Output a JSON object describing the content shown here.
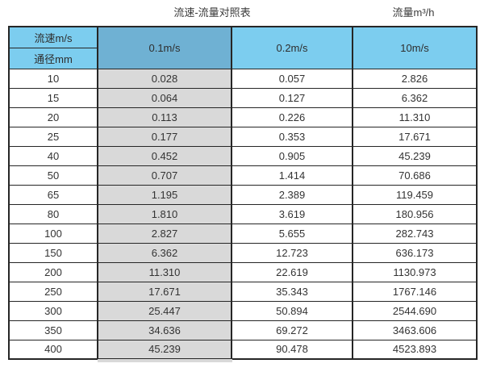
{
  "page": {
    "title": "流速-流量对照表",
    "right_label": "流量m³/h"
  },
  "chart_data": {
    "type": "table",
    "title": "流速-流量对照表",
    "unit_note": "流量m³/h",
    "corner_header_top": "流速m/s",
    "corner_header_bottom": "通径mm",
    "velocity_columns": [
      "0.1m/s",
      "0.2m/s",
      "10m/s"
    ],
    "highlighted_column": "0.1m/s",
    "rows": [
      [
        "10",
        "0.028",
        "0.057",
        "2.826"
      ],
      [
        "15",
        "0.064",
        "0.127",
        "6.362"
      ],
      [
        "20",
        "0.113",
        "0.226",
        "11.310"
      ],
      [
        "25",
        "0.177",
        "0.353",
        "17.671"
      ],
      [
        "40",
        "0.452",
        "0.905",
        "45.239"
      ],
      [
        "50",
        "0.707",
        "1.414",
        "70.686"
      ],
      [
        "65",
        "1.195",
        "2.389",
        "119.459"
      ],
      [
        "80",
        "1.810",
        "3.619",
        "180.956"
      ],
      [
        "100",
        "2.827",
        "5.655",
        "282.743"
      ],
      [
        "150",
        "6.362",
        "12.723",
        "636.173"
      ],
      [
        "200",
        "11.310",
        "22.619",
        "1130.973"
      ],
      [
        "250",
        "17.671",
        "35.343",
        "1767.146"
      ],
      [
        "300",
        "25.447",
        "50.894",
        "2544.690"
      ],
      [
        "350",
        "34.636",
        "69.272",
        "3463.606"
      ],
      [
        "400",
        "45.239",
        "90.478",
        "4523.893"
      ]
    ]
  },
  "colors": {
    "header_blue": "#7ccdef",
    "highlight_header_blue": "#6fb1d3",
    "highlight_column_bg": "#d9d9d9",
    "border": "#262626"
  }
}
